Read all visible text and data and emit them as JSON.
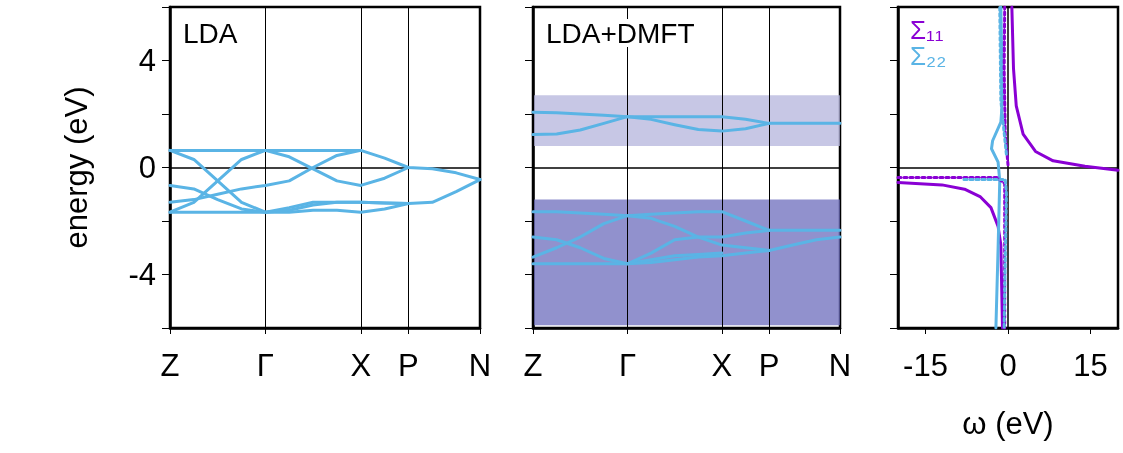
{
  "chart_data": [
    {
      "type": "line",
      "title": "LDA",
      "ylabel": "energy (eV)",
      "ylim": [
        -6,
        6
      ],
      "marker": "none",
      "grid": "x",
      "categories": [
        "Z",
        null,
        null,
        null,
        "Γ",
        null,
        null,
        null,
        "X",
        null,
        "P",
        null,
        null,
        "N"
      ],
      "yticks": [
        {
          "value": -6,
          "label": null
        },
        -4,
        {
          "value": -2,
          "label": null
        },
        0,
        {
          "value": 2,
          "label": null
        },
        4,
        {
          "value": 6,
          "label": null
        }
      ],
      "ref_lines": [
        {
          "axis": "y",
          "value": 0,
          "color": "#000000"
        }
      ],
      "series": [
        {
          "color": "#5ab4e5",
          "values": [
            0.64,
            0.64,
            0.64,
            0.64,
            0.64,
            0.64,
            0.64,
            0.64,
            0.64,
            0.35,
            0,
            -0.05,
            -0.2,
            -0.45
          ]
        },
        {
          "color": "#5ab4e5",
          "values": [
            0.64,
            0.3,
            -0.5,
            -1.3,
            -1.67,
            -1.67,
            -1.6,
            -1.6,
            -1.67,
            -1.55,
            -1.35,
            null,
            null,
            null
          ]
        },
        {
          "color": "#5ab4e5",
          "values": [
            -1.67,
            -1.3,
            -0.5,
            0.3,
            0.64,
            0.4,
            -0.05,
            -0.5,
            -0.67,
            -0.4,
            0,
            null,
            null,
            null
          ]
        },
        {
          "color": "#5ab4e5",
          "values": [
            -0.67,
            -0.8,
            -1.2,
            -1.55,
            -1.67,
            -1.5,
            -1.3,
            -1.3,
            -1.3,
            -1.33,
            -1.35,
            null,
            null,
            null
          ]
        },
        {
          "color": "#5ab4e5",
          "values": [
            -1.3,
            -1.2,
            -1.0,
            -0.8,
            -0.67,
            -0.5,
            0,
            0.45,
            0.64,
            null,
            null,
            null,
            null,
            null
          ]
        },
        {
          "color": "#5ab4e5",
          "values": [
            -1.67,
            -1.67,
            -1.67,
            -1.67,
            -1.67,
            -1.6,
            -1.4,
            -1.3,
            -1.3,
            -1.33,
            -1.35,
            -1.3,
            -0.9,
            -0.45
          ]
        }
      ]
    },
    {
      "type": "line",
      "title": "LDA+DMFT",
      "ylim": [
        -6,
        6
      ],
      "marker": "none",
      "grid": "x",
      "tick_labels": "x",
      "categories": [
        "Z",
        null,
        null,
        null,
        "Γ",
        null,
        null,
        null,
        "X",
        null,
        "P",
        null,
        null,
        "N"
      ],
      "yticks": [
        {
          "value": -6,
          "label": null
        },
        {
          "value": -4,
          "label": null
        },
        {
          "value": -2,
          "label": null
        },
        {
          "value": 0,
          "label": null
        },
        {
          "value": 2,
          "label": null
        },
        {
          "value": 4,
          "label": null
        },
        {
          "value": 6,
          "label": null
        }
      ],
      "ref_lines": [
        {
          "axis": "y",
          "value": 0,
          "color": "#000000"
        }
      ],
      "bands": [
        {
          "axis": "y",
          "from": 0.8,
          "to": 2.7,
          "color": "#b4b4dc"
        },
        {
          "axis": "y",
          "from": -5.9,
          "to": -1.2,
          "color": "#6c6cbc"
        }
      ],
      "series": [
        {
          "color": "#5ab4e5",
          "values": [
            2.07,
            2.05,
            2.0,
            1.95,
            1.9,
            1.9,
            1.9,
            1.9,
            1.9,
            1.8,
            1.65,
            1.65,
            1.65,
            1.65
          ]
        },
        {
          "color": "#5ab4e5",
          "values": [
            1.23,
            1.25,
            1.4,
            1.65,
            1.9,
            1.8,
            1.6,
            1.42,
            1.36,
            1.45,
            1.65,
            null,
            null,
            null
          ]
        },
        {
          "color": "#5ab4e5",
          "values": [
            -1.65,
            -1.65,
            -1.7,
            -1.75,
            -1.8,
            -1.75,
            -1.7,
            -1.65,
            -1.65,
            -2.0,
            -2.35,
            -2.35,
            -2.35,
            -2.35
          ]
        },
        {
          "color": "#5ab4e5",
          "values": [
            -3.35,
            -3.0,
            -2.6,
            -2.1,
            -1.8,
            -1.9,
            -2.2,
            -2.6,
            -2.9,
            -3.0,
            -3.1,
            -2.9,
            -2.7,
            -2.6
          ]
        },
        {
          "color": "#5ab4e5",
          "values": [
            -2.6,
            -2.7,
            -3.0,
            -3.4,
            -3.6,
            -3.45,
            -3.3,
            -3.25,
            -3.2,
            null,
            null,
            null,
            null,
            null
          ]
        },
        {
          "color": "#5ab4e5",
          "values": [
            -3.6,
            -3.6,
            -3.6,
            -3.6,
            -3.6,
            -3.55,
            -3.45,
            -3.35,
            -3.3,
            -3.2,
            -3.1,
            null,
            null,
            null
          ]
        },
        {
          "color": "#5ab4e5",
          "values": [
            null,
            null,
            null,
            null,
            -3.6,
            -3.2,
            -2.7,
            -2.6,
            -2.6,
            -2.45,
            -2.35,
            null,
            null,
            null
          ]
        }
      ]
    },
    {
      "type": "line",
      "xlabel": "ω (eV)",
      "xlim": [
        -20,
        20
      ],
      "ylim": [
        -6,
        6
      ],
      "marker": "none",
      "legend": "top left",
      "tick_labels": "x",
      "xticks": [
        -15,
        0,
        15
      ],
      "yticks": [
        {
          "value": -6,
          "label": null
        },
        {
          "value": -4,
          "label": null
        },
        {
          "value": -2,
          "label": null
        },
        {
          "value": 0,
          "label": null
        },
        {
          "value": 2,
          "label": null
        },
        {
          "value": 4,
          "label": null
        },
        {
          "value": 6,
          "label": null
        }
      ],
      "ref_lines": [
        {
          "axis": "y",
          "value": 0,
          "color": "#000000"
        },
        {
          "axis": "x",
          "value": 0,
          "color": "#000000"
        }
      ],
      "series": [
        {
          "name": "Σ₁₁",
          "color": "#8a00d4",
          "line_style": "solid",
          "x": [
            -20,
            -12,
            -7.9,
            -5,
            -3.1,
            -1.8,
            -1.3,
            -1.0
          ],
          "values": [
            -0.56,
            -0.65,
            -0.81,
            -1.1,
            -1.5,
            -2.2,
            -2.9,
            -6
          ]
        },
        {
          "color": "#8a00d4",
          "line_style": "solid",
          "x": [
            0.7,
            1,
            1.5,
            2.75,
            5,
            8.2,
            14,
            20
          ],
          "values": [
            6,
            3.7,
            2.3,
            1.25,
            0.6,
            0.25,
            0.05,
            -0.1
          ]
        },
        {
          "name": "Σ₂₂",
          "color": "#5ab4e5",
          "line_style": "solid",
          "x": [
            -1.3,
            -1.0,
            -1.3,
            -2.8,
            -3.0,
            -1.8,
            -1.5,
            -1.8,
            -2.2
          ],
          "values": [
            6,
            2.5,
            1.7,
            1.0,
            0.7,
            0.2,
            -0.5,
            -3,
            -6
          ]
        },
        {
          "color": "#8a00d4",
          "line_style": "dotted",
          "x": [
            -20,
            -2,
            -0.6,
            -0.6
          ],
          "values": [
            -0.37,
            -0.37,
            -0.6,
            -6
          ]
        },
        {
          "color": "#8a00d4",
          "line_style": "dotted",
          "x": [
            0,
            -0.5,
            -0.7,
            -0.6
          ],
          "values": [
            0.1,
            1.25,
            3.7,
            6
          ]
        },
        {
          "color": "#5ab4e5",
          "line_style": "dotted",
          "x": [
            -8,
            -0.5,
            -0.3,
            -0.7
          ],
          "values": [
            -0.45,
            -0.45,
            -1,
            -6
          ]
        },
        {
          "color": "#5ab4e5",
          "line_style": "dotted",
          "x": [
            -0.3,
            -1.3,
            -1.5
          ],
          "values": [
            0.5,
            2.5,
            6
          ]
        }
      ]
    }
  ]
}
